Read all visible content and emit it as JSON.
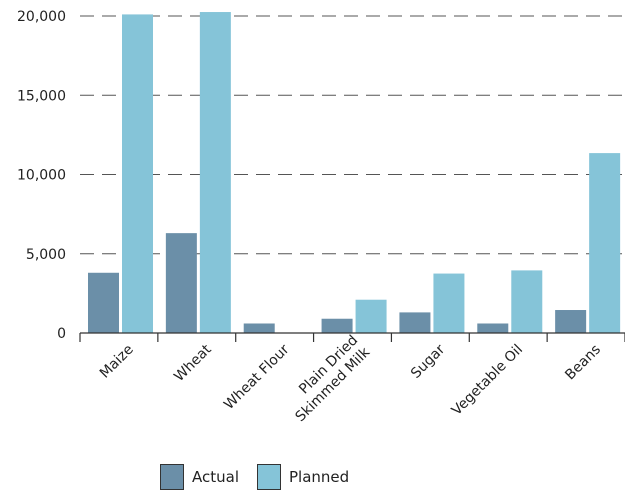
{
  "chart_data": {
    "type": "bar",
    "categories": [
      "Maize",
      "Wheat",
      "Wheat Flour",
      "Plain Dried Skimmed Milk",
      "Sugar",
      "Vegetable Oil",
      "Beans"
    ],
    "category_lines": [
      [
        "Maize"
      ],
      [
        "Wheat"
      ],
      [
        "Wheat Flour"
      ],
      [
        "Plain Dried",
        "Skimmed Milk"
      ],
      [
        "Sugar"
      ],
      [
        "Vegetable Oil"
      ],
      [
        "Beans"
      ]
    ],
    "series": [
      {
        "name": "Actual",
        "color": "#6b8fa8",
        "values": [
          3800,
          6300,
          600,
          900,
          1300,
          600,
          1450
        ]
      },
      {
        "name": "Planned",
        "color": "#85c4d8",
        "values": [
          20100,
          20250,
          0,
          2100,
          3750,
          3950,
          11350
        ]
      }
    ],
    "y_ticks": [
      "0",
      "5,000",
      "10,000",
      "15,000",
      "20,000"
    ],
    "y_tick_values": [
      0,
      5000,
      10000,
      15000,
      20000
    ],
    "ylim": [
      0,
      20000
    ],
    "grid": true,
    "legend_position": "bottom"
  }
}
